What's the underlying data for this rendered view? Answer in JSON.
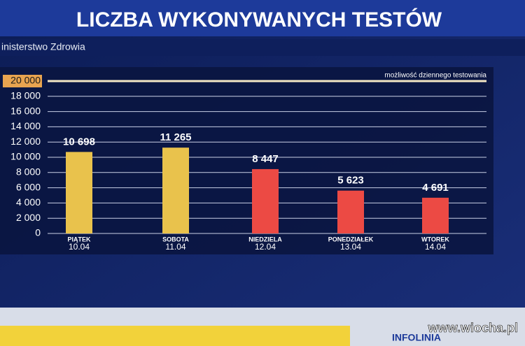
{
  "chart_data": {
    "type": "bar",
    "title": "LICZBA WYKONYWANYCH TESTÓW",
    "subtitle": "inisterstwo Zdrowia",
    "annotation": "możliwość dziennego testowania",
    "categories": [
      "PIĄTEK",
      "SOBOTA",
      "NIEDZIELA",
      "PONEDZIAŁEK",
      "WTOREK"
    ],
    "dates": [
      "10.04",
      "11.04",
      "12.04",
      "13.04",
      "14.04"
    ],
    "values": [
      10698,
      11265,
      8447,
      5623,
      4691
    ],
    "value_labels": [
      "10 698",
      "11 265",
      "8 447",
      "5 623",
      "4 691"
    ],
    "colors": [
      "#e9c24c",
      "#e9c24c",
      "#ec4a44",
      "#ec4a44",
      "#ec4a44"
    ],
    "ylim": [
      0,
      20000
    ],
    "yticks": [
      0,
      {
        "value": 2000,
        "label": "2 000"
      },
      {
        "value": 4000,
        "label": "4 000"
      },
      {
        "value": 6000,
        "label": "6 000"
      },
      {
        "value": 8000,
        "label": "8 000"
      },
      {
        "value": 10000,
        "label": "10 000"
      },
      {
        "value": 12000,
        "label": "12 000"
      },
      {
        "value": 14000,
        "label": "14 000"
      },
      {
        "value": 16000,
        "label": "16 000"
      },
      {
        "value": 18000,
        "label": "18 000"
      },
      {
        "value": 20000,
        "label": "20 000"
      }
    ],
    "grid": true,
    "watermark": "www.wiocha.pl",
    "ticker": "INFOLINIA"
  }
}
